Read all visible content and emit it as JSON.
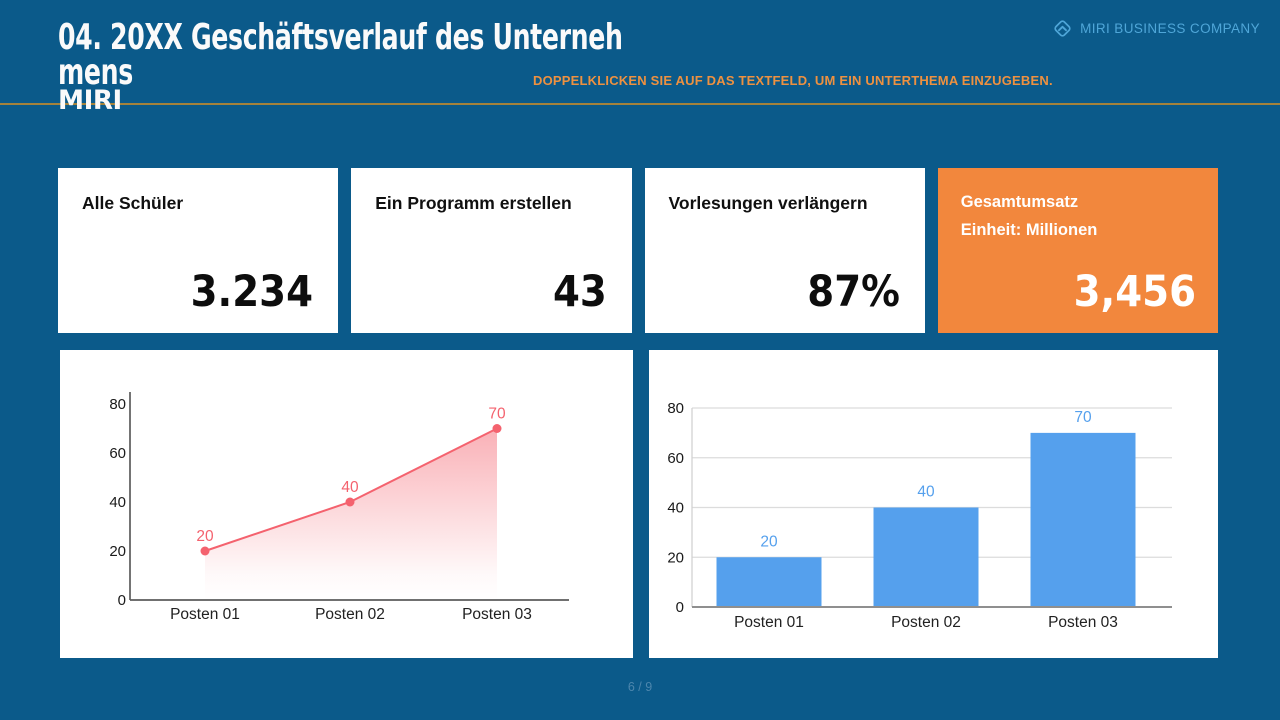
{
  "theme": {
    "background": "#0B5A8A",
    "accent_orange": "#F2873D",
    "divider_gold": "#A5823B",
    "company_blue": "#4FA6D8",
    "instruction_orange": "#EE9140",
    "footer_blue": "#4C86AD"
  },
  "header": {
    "title_lines": [
      "04. 20XX Geschäftsverlauf des Unterneh",
      "mens"
    ],
    "brand": "MIRI",
    "company_name": "MIRI BUSINESS COMPANY",
    "instruction": "DOPPELKLICKEN SIE AUF DAS TEXTFELD, UM EIN UNTERTHEMA EINZUGEBEN."
  },
  "stats": {
    "cards": [
      {
        "label": "Alle Schüler",
        "value": "3.234"
      },
      {
        "label": "Ein Programm erstellen",
        "value": "43"
      },
      {
        "label": "Vorlesungen verlängern",
        "value": "87%"
      },
      {
        "label": "Gesamtumsatz",
        "sublabel": "Einheit: Millionen",
        "value": "3,456",
        "highlighted": true,
        "bg_color": "#F2873D"
      }
    ]
  },
  "chart_data": [
    {
      "type": "area",
      "categories": [
        "Posten 01",
        "Posten 02",
        "Posten 03"
      ],
      "values": [
        20,
        40,
        70
      ],
      "title": "",
      "xlabel": "",
      "ylabel": "",
      "ylim": [
        0,
        80
      ],
      "yticks": [
        0,
        20,
        40,
        60,
        80
      ],
      "grid": false,
      "legend": false,
      "data_labels": [
        20,
        40,
        70
      ],
      "color": "#F4626E"
    },
    {
      "type": "bar",
      "categories": [
        "Posten 01",
        "Posten 02",
        "Posten 03"
      ],
      "values": [
        20,
        40,
        70
      ],
      "title": "",
      "xlabel": "",
      "ylabel": "",
      "ylim": [
        0,
        80
      ],
      "yticks": [
        0,
        20,
        40,
        60,
        80
      ],
      "grid": true,
      "legend": false,
      "data_labels": [
        20,
        40,
        70
      ],
      "color": "#55A0ED"
    }
  ],
  "footer": {
    "page_indicator": "6 / 9"
  }
}
